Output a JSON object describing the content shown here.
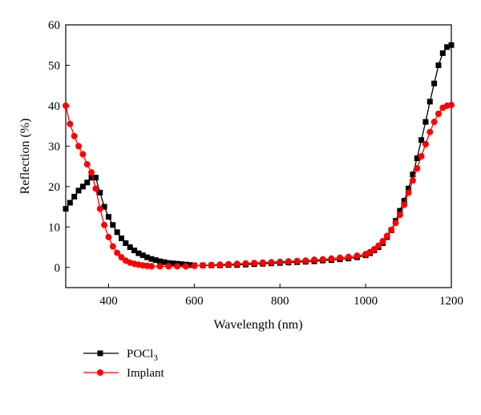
{
  "chart_data": {
    "type": "line",
    "xlabel": "Wavelength (nm)",
    "ylabel": "Reflection (%)",
    "xlim": [
      300,
      1200
    ],
    "ylim": [
      -5,
      60
    ],
    "x_ticks": [
      400,
      600,
      800,
      1000,
      1200
    ],
    "y_ticks": [
      0,
      10,
      20,
      30,
      40,
      50,
      60
    ],
    "x_tick_labels": [
      "400",
      "600",
      "800",
      "1000",
      "1200"
    ],
    "y_tick_labels": [
      "0",
      "10",
      "20",
      "30",
      "40",
      "50",
      "60"
    ],
    "grid": false,
    "legend_position": "bottom-left, below plot",
    "series": [
      {
        "name": "POCl",
        "name_subscript": "3",
        "color": "#000000",
        "marker": "square",
        "points": [
          [
            300,
            14.5
          ],
          [
            310,
            16
          ],
          [
            320,
            17.5
          ],
          [
            330,
            19
          ],
          [
            340,
            20
          ],
          [
            350,
            21
          ],
          [
            360,
            22.2
          ],
          [
            370,
            22.2
          ],
          [
            380,
            18.5
          ],
          [
            390,
            15
          ],
          [
            400,
            12.5
          ],
          [
            410,
            10.5
          ],
          [
            420,
            8.7
          ],
          [
            430,
            7.2
          ],
          [
            440,
            6
          ],
          [
            450,
            5
          ],
          [
            460,
            4.2
          ],
          [
            470,
            3.5
          ],
          [
            480,
            3
          ],
          [
            490,
            2.5
          ],
          [
            500,
            2.1
          ],
          [
            510,
            1.8
          ],
          [
            520,
            1.5
          ],
          [
            530,
            1.3
          ],
          [
            540,
            1.1
          ],
          [
            550,
            1
          ],
          [
            560,
            0.9
          ],
          [
            570,
            0.8
          ],
          [
            580,
            0.7
          ],
          [
            590,
            0.6
          ],
          [
            600,
            0.5
          ],
          [
            620,
            0.5
          ],
          [
            640,
            0.5
          ],
          [
            660,
            0.5
          ],
          [
            680,
            0.6
          ],
          [
            700,
            0.6
          ],
          [
            720,
            0.7
          ],
          [
            740,
            0.8
          ],
          [
            760,
            0.9
          ],
          [
            780,
            1
          ],
          [
            800,
            1.1
          ],
          [
            820,
            1.2
          ],
          [
            840,
            1.3
          ],
          [
            860,
            1.4
          ],
          [
            880,
            1.5
          ],
          [
            900,
            1.7
          ],
          [
            920,
            1.8
          ],
          [
            940,
            2
          ],
          [
            960,
            2.2
          ],
          [
            980,
            2.5
          ],
          [
            1000,
            3
          ],
          [
            1010,
            3.5
          ],
          [
            1020,
            4.2
          ],
          [
            1030,
            5
          ],
          [
            1040,
            6
          ],
          [
            1050,
            7.5
          ],
          [
            1060,
            9.2
          ],
          [
            1070,
            11.5
          ],
          [
            1080,
            14
          ],
          [
            1090,
            16.5
          ],
          [
            1100,
            19.5
          ],
          [
            1110,
            23
          ],
          [
            1120,
            27
          ],
          [
            1130,
            31.5
          ],
          [
            1140,
            36
          ],
          [
            1150,
            41
          ],
          [
            1160,
            45.5
          ],
          [
            1170,
            50
          ],
          [
            1180,
            53
          ],
          [
            1190,
            54.5
          ],
          [
            1200,
            55
          ]
        ]
      },
      {
        "name": "Implant",
        "color": "#ff0000",
        "marker": "circle",
        "points": [
          [
            300,
            40
          ],
          [
            310,
            35.5
          ],
          [
            320,
            32.5
          ],
          [
            330,
            30
          ],
          [
            340,
            28
          ],
          [
            350,
            25.5
          ],
          [
            360,
            23.5
          ],
          [
            370,
            19.5
          ],
          [
            380,
            14.5
          ],
          [
            390,
            10.5
          ],
          [
            400,
            7.5
          ],
          [
            410,
            5.2
          ],
          [
            420,
            3.6
          ],
          [
            430,
            2.5
          ],
          [
            440,
            1.7
          ],
          [
            450,
            1.2
          ],
          [
            460,
            0.9
          ],
          [
            470,
            0.7
          ],
          [
            480,
            0.5
          ],
          [
            490,
            0.4
          ],
          [
            500,
            0.3
          ],
          [
            520,
            0.3
          ],
          [
            540,
            0.3
          ],
          [
            560,
            0.3
          ],
          [
            580,
            0.3
          ],
          [
            600,
            0.4
          ],
          [
            620,
            0.5
          ],
          [
            640,
            0.6
          ],
          [
            660,
            0.7
          ],
          [
            680,
            0.8
          ],
          [
            700,
            0.9
          ],
          [
            720,
            1
          ],
          [
            740,
            1.1
          ],
          [
            760,
            1.2
          ],
          [
            780,
            1.3
          ],
          [
            800,
            1.4
          ],
          [
            820,
            1.5
          ],
          [
            840,
            1.6
          ],
          [
            860,
            1.7
          ],
          [
            880,
            1.9
          ],
          [
            900,
            2
          ],
          [
            920,
            2.2
          ],
          [
            940,
            2.4
          ],
          [
            960,
            2.6
          ],
          [
            980,
            2.9
          ],
          [
            1000,
            3.3
          ],
          [
            1010,
            3.8
          ],
          [
            1020,
            4.5
          ],
          [
            1030,
            5.4
          ],
          [
            1040,
            6.5
          ],
          [
            1050,
            7.8
          ],
          [
            1060,
            9.3
          ],
          [
            1070,
            11
          ],
          [
            1080,
            13
          ],
          [
            1090,
            15.5
          ],
          [
            1100,
            18.5
          ],
          [
            1110,
            21.5
          ],
          [
            1120,
            24.5
          ],
          [
            1130,
            27.5
          ],
          [
            1140,
            30.5
          ],
          [
            1150,
            33.5
          ],
          [
            1160,
            36
          ],
          [
            1170,
            38
          ],
          [
            1180,
            39.5
          ],
          [
            1190,
            40
          ],
          [
            1200,
            40.2
          ]
        ]
      }
    ]
  }
}
